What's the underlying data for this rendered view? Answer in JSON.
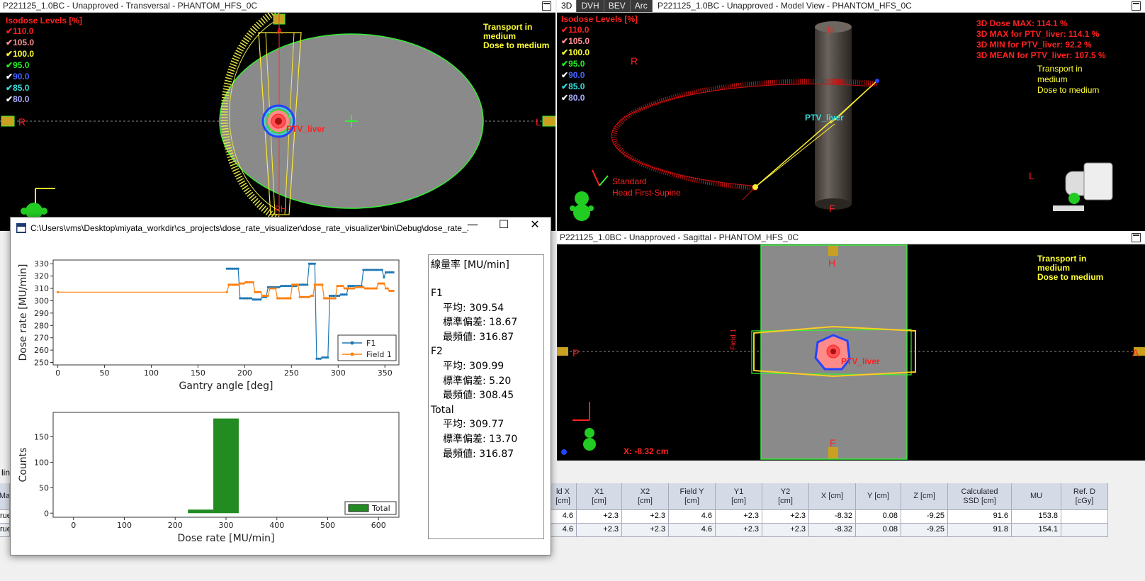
{
  "transversal": {
    "title": "P221125_1.0BC - Unapproved - Transversal - PHANTOM_HFS_0C",
    "iso_title": "Isodose Levels [%]",
    "iso_levels": [
      {
        "label": "110.0",
        "color": "#ff2020",
        "check": "#ff2020"
      },
      {
        "label": "105.0",
        "color": "#ff9090",
        "check": "#ff9090"
      },
      {
        "label": "100.0",
        "color": "#ffff33",
        "check": "#ffff33"
      },
      {
        "label": "95.0",
        "color": "#22ee22",
        "check": "#22ee22"
      },
      {
        "label": "90.0",
        "color": "#4466ff",
        "check": "#ffffff"
      },
      {
        "label": "85.0",
        "color": "#33dddd",
        "check": "#33dddd"
      },
      {
        "label": "80.0",
        "color": "#aaaaff",
        "check": "#ffffff"
      }
    ],
    "transport_note": [
      "Transport in",
      "medium",
      "Dose to medium"
    ],
    "label_R": "R",
    "label_L": "L",
    "label_A": "A",
    "label_PH": "PH",
    "structure": "PTV_liver"
  },
  "model_view": {
    "tabs": [
      "3D",
      "DVH",
      "BEV",
      "Arc"
    ],
    "title": "P221125_1.0BC - Unapproved - Model View - PHANTOM_HFS_0C",
    "iso_title": "Isodose Levels [%]",
    "stats": [
      "3D Dose MAX: 114.1 %",
      "3D MAX for PTV_liver: 114.1 %",
      "3D MIN for PTV_liver: 92.2 %",
      "3D MEAN for PTV_liver: 107.5 %"
    ],
    "transport_note": [
      "Transport in",
      "medium",
      "Dose to medium"
    ],
    "label_H": "H",
    "label_F": "F",
    "label_R": "R",
    "label_L": "L",
    "structure": "PTV_liver",
    "orientation": [
      "Standard",
      "Head First-Supine"
    ]
  },
  "sagittal": {
    "title": "P221125_1.0BC - Unapproved - Sagittal - PHANTOM_HFS_0C",
    "transport_note": [
      "Transport in",
      "medium",
      "Dose to medium"
    ],
    "label_H": "H",
    "label_F": "F",
    "label_P": "P",
    "label_A": "A",
    "field_label": "Field 1",
    "structure": "PTV_liver",
    "coord": "X: -8.32 cm"
  },
  "dialog": {
    "title": "C:\\Users\\vms\\Desktop\\miyata_workdir\\cs_projects\\dose_rate_visualizer\\dose_rate_visualizer\\bin\\Debug\\dose_rate_...",
    "minimize": "—",
    "maximize": "☐",
    "close": "✕"
  },
  "stats_panel": {
    "header": "線量率 [MU/min]",
    "groups": [
      {
        "name": "F1",
        "mean": "平均: 309.54",
        "std": "標準偏差: 18.67",
        "mode": "最頻値: 316.87"
      },
      {
        "name": "F2",
        "mean": "平均: 309.99",
        "std": "標準偏差: 5.20",
        "mode": "最頻値: 308.45"
      },
      {
        "name": "Total",
        "mean": "平均: 309.77",
        "std": "標準偏差: 13.70",
        "mode": "最頻値: 316.87"
      }
    ]
  },
  "chart_data": [
    {
      "type": "line",
      "xlabel": "Gantry angle [deg]",
      "ylabel": "Dose rate [MU/min]",
      "xlim": [
        -5,
        365
      ],
      "ylim": [
        248,
        333
      ],
      "xticks": [
        0,
        50,
        100,
        150,
        200,
        250,
        300,
        350
      ],
      "yticks": [
        250,
        260,
        270,
        280,
        290,
        300,
        310,
        320,
        330
      ],
      "legend": "bottom-right",
      "series": [
        {
          "name": "F1",
          "color": "#1f77b4",
          "x": [
            181,
            183,
            185,
            187,
            189,
            191,
            193,
            195,
            197,
            199,
            201,
            203,
            205,
            207,
            209,
            211,
            213,
            215,
            217,
            219,
            221,
            223,
            225,
            227,
            229,
            231,
            233,
            235,
            237,
            239,
            241,
            243,
            245,
            247,
            249,
            251,
            253,
            255,
            257,
            259,
            261,
            263,
            265,
            267,
            269,
            271,
            273,
            275,
            277,
            279,
            281,
            283,
            285,
            287,
            289,
            291,
            293,
            295,
            297,
            299,
            301,
            303,
            305,
            307,
            309,
            311,
            313,
            315,
            317,
            319,
            321,
            323,
            325,
            327,
            329,
            331,
            333,
            335,
            337,
            339,
            341,
            343,
            345,
            347,
            349,
            351,
            353,
            355,
            357,
            359
          ],
          "y": [
            326,
            326,
            326,
            326,
            326,
            326,
            326,
            302,
            302,
            302,
            302,
            302,
            302,
            302,
            301,
            301,
            301,
            301,
            301,
            303,
            303,
            303,
            311,
            311,
            311,
            311,
            311,
            311,
            311,
            312,
            312,
            312,
            312,
            312,
            312,
            312,
            312,
            312,
            313,
            313,
            313,
            313,
            313,
            313,
            330,
            330,
            330,
            330,
            253,
            253,
            253,
            254,
            254,
            254,
            254,
            304,
            304,
            304,
            304,
            304,
            304,
            305,
            305,
            305,
            305,
            312,
            312,
            312,
            312,
            312,
            312,
            312,
            312,
            325,
            325,
            325,
            325,
            325,
            325,
            325,
            325,
            325,
            325,
            325,
            319,
            323,
            323,
            323,
            323,
            323
          ]
        },
        {
          "name": "Field 1",
          "color": "#ff7f0e",
          "x": [
            0,
            181,
            183,
            185,
            187,
            189,
            191,
            193,
            195,
            197,
            199,
            201,
            203,
            205,
            207,
            209,
            211,
            213,
            215,
            217,
            219,
            221,
            223,
            225,
            227,
            229,
            231,
            233,
            235,
            237,
            239,
            241,
            243,
            245,
            247,
            249,
            251,
            253,
            255,
            257,
            259,
            261,
            263,
            265,
            267,
            269,
            271,
            273,
            275,
            277,
            279,
            281,
            283,
            285,
            287,
            289,
            291,
            293,
            295,
            297,
            299,
            301,
            303,
            305,
            307,
            309,
            311,
            313,
            315,
            317,
            319,
            321,
            323,
            325,
            327,
            329,
            331,
            333,
            335,
            337,
            339,
            341,
            343,
            345,
            347,
            349,
            351,
            353,
            355,
            357,
            359
          ],
          "y": [
            307,
            307,
            313,
            313,
            313,
            313,
            313,
            313,
            314,
            314,
            314,
            315,
            315,
            315,
            315,
            315,
            307,
            307,
            307,
            307,
            304,
            304,
            304,
            304,
            310,
            310,
            310,
            310,
            302,
            302,
            302,
            302,
            302,
            302,
            302,
            302,
            313,
            313,
            313,
            313,
            303,
            303,
            303,
            303,
            303,
            303,
            304,
            304,
            313,
            313,
            313,
            313,
            313,
            302,
            302,
            302,
            302,
            302,
            302,
            302,
            312,
            312,
            312,
            312,
            310,
            310,
            310,
            310,
            310,
            310,
            311,
            311,
            311,
            311,
            311,
            310,
            310,
            310,
            310,
            310,
            310,
            310,
            314,
            314,
            314,
            314,
            310,
            310,
            308,
            308,
            308
          ]
        }
      ]
    },
    {
      "type": "bar",
      "xlabel": "Dose rate [MU/min]",
      "ylabel": "Counts",
      "xlim": [
        -40,
        640
      ],
      "ylim": [
        -8,
        198
      ],
      "xticks": [
        0,
        100,
        200,
        300,
        400,
        500,
        600
      ],
      "yticks": [
        0,
        50,
        100,
        150
      ],
      "legend": "bottom-right",
      "series": [
        {
          "name": "Total",
          "color": "#228b22",
          "bins": [
            {
              "x0": 225,
              "x1": 275,
              "count": 7
            },
            {
              "x0": 275,
              "x1": 325,
              "count": 186
            }
          ]
        }
      ]
    }
  ],
  "table": {
    "headers": [
      "ld X\n[cm]",
      "X1\n[cm]",
      "X2\n[cm]",
      "Field Y\n[cm]",
      "Y1\n[cm]",
      "Y2\n[cm]",
      "X [cm]",
      "Y [cm]",
      "Z [cm]",
      "Calculated\nSSD [cm]",
      "MU",
      "Ref. D\n[cGy]"
    ],
    "left_header": "Ma",
    "rows": [
      {
        "left": "rue",
        "cells": [
          "4.6",
          "+2.3",
          "+2.3",
          "4.6",
          "+2.3",
          "+2.3",
          "-8.32",
          "0.08",
          "-9.25",
          "91.6",
          "153.8",
          ""
        ]
      },
      {
        "left": "rue",
        "cells": [
          "4.6",
          "+2.3",
          "+2.3",
          "4.6",
          "+2.3",
          "+2.3",
          "-8.32",
          "0.08",
          "-9.25",
          "91.8",
          "154.1",
          ""
        ]
      }
    ],
    "strip_label": "lin"
  }
}
